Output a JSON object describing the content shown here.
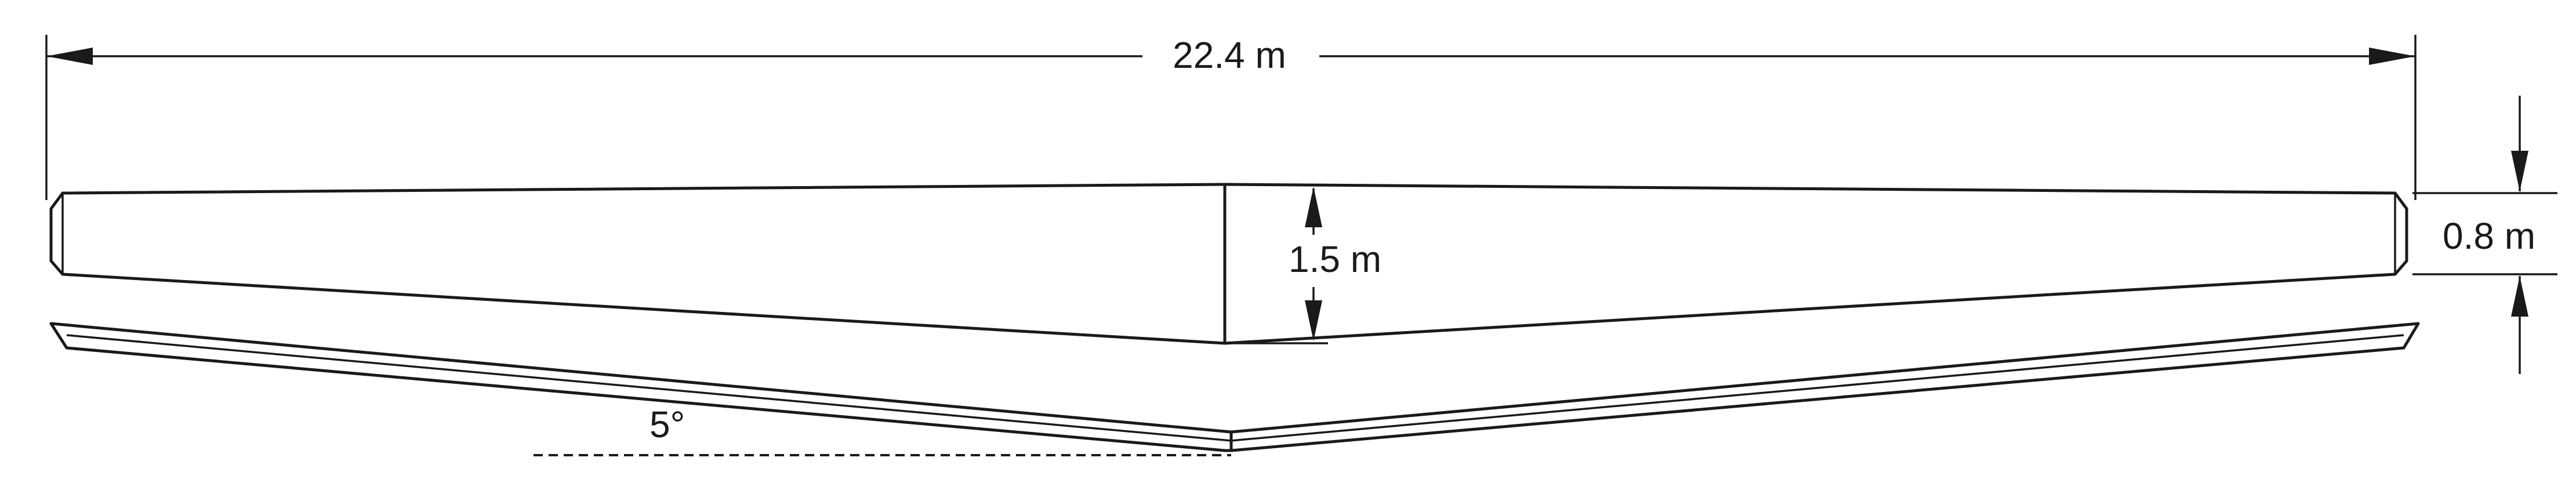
{
  "dimensions": {
    "span": "22.4 m",
    "root_chord": "1.5 m",
    "tip_chord": "0.8 m",
    "dihedral": "5°"
  },
  "colors": {
    "stroke": "#1a1a1a",
    "background": "#ffffff"
  }
}
